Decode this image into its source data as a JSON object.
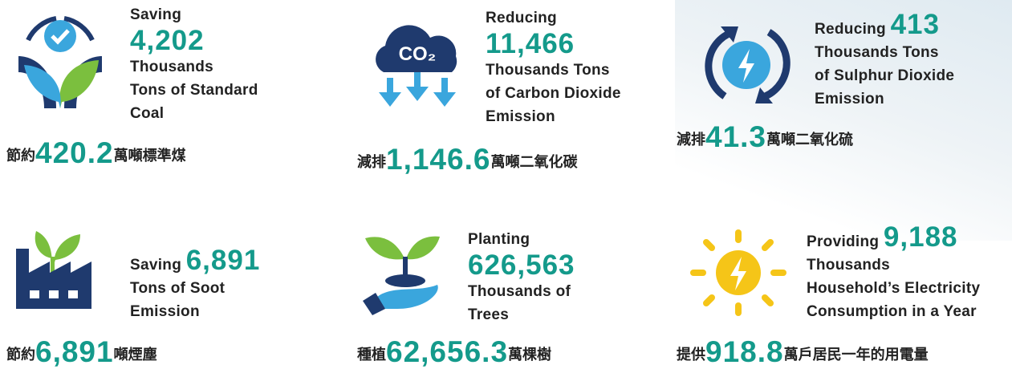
{
  "items": [
    {
      "en": {
        "prefix": "Saving",
        "value": "4,202",
        "lines": [
          "Thousands",
          "Tons of Standard",
          "Coal"
        ]
      },
      "zh": {
        "prefix": "節約",
        "value": "420.2",
        "suffix": "萬噸標準煤"
      }
    },
    {
      "en": {
        "prefix": "Reducing",
        "value": "11,466",
        "lines": [
          "Thousands Tons",
          "of Carbon Dioxide",
          "Emission"
        ]
      },
      "zh": {
        "prefix": "減排",
        "value": "1,146.6",
        "suffix": "萬噸二氧化碳"
      },
      "icon_text": "CO₂"
    },
    {
      "en": {
        "prefix": "Reducing",
        "value": "413",
        "lines": [
          "Thousands Tons",
          "of Sulphur Dioxide",
          "Emission"
        ]
      },
      "zh": {
        "prefix": "減排",
        "value": "41.3",
        "suffix": "萬噸二氧化硫"
      }
    },
    {
      "en": {
        "prefix": "Saving",
        "value": "6,891",
        "lines": [
          "Tons of Soot",
          "Emission"
        ]
      },
      "zh": {
        "prefix": "節約",
        "value": "6,891",
        "suffix": "噸煙塵"
      }
    },
    {
      "en": {
        "prefix": "Planting",
        "value": "626,563",
        "lines": [
          "Thousands of",
          "Trees"
        ]
      },
      "zh": {
        "prefix": "種植",
        "value": "62,656.3",
        "suffix": "萬棵樹"
      }
    },
    {
      "en": {
        "prefix": "Providing",
        "value": "9,188",
        "lines": [
          "Thousands",
          "Household’s Electricity",
          "Consumption in a Year"
        ]
      },
      "zh": {
        "prefix": "提供",
        "value": "918.8",
        "suffix": "萬戶居民一年的用電量"
      }
    }
  ]
}
